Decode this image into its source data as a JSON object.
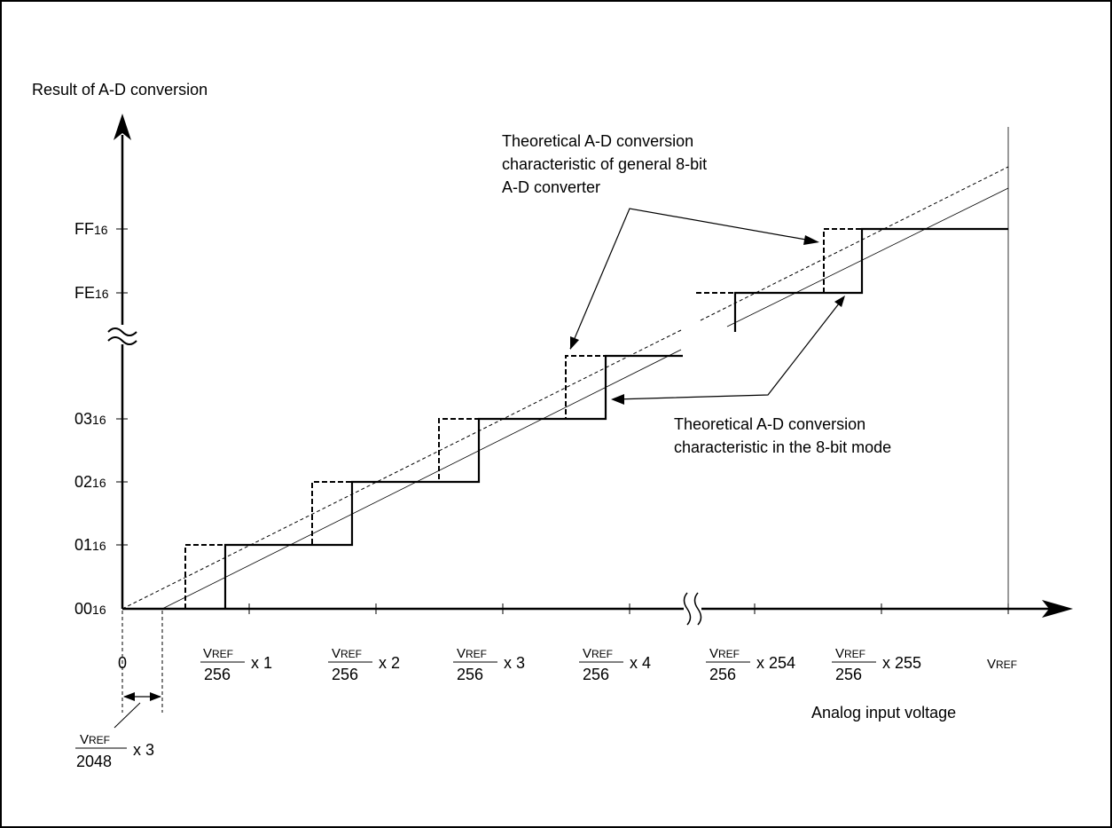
{
  "y_axis_title": "Result of A-D conversion",
  "x_axis_title": "Analog input voltage",
  "y_ticks": [
    {
      "main": "FF",
      "sub": "16"
    },
    {
      "main": "FE",
      "sub": "16"
    },
    {
      "main": "03",
      "sub": "16"
    },
    {
      "main": "02",
      "sub": "16"
    },
    {
      "main": "01",
      "sub": "16"
    },
    {
      "main": "00",
      "sub": "16"
    }
  ],
  "x_zero": "0",
  "x_ticks": [
    {
      "num_v": "V",
      "num_sc": "REF",
      "den": "256",
      "mult": "x 1"
    },
    {
      "num_v": "V",
      "num_sc": "REF",
      "den": "256",
      "mult": "x 2"
    },
    {
      "num_v": "V",
      "num_sc": "REF",
      "den": "256",
      "mult": "x 3"
    },
    {
      "num_v": "V",
      "num_sc": "REF",
      "den": "256",
      "mult": "x 4"
    },
    {
      "num_v": "V",
      "num_sc": "REF",
      "den": "256",
      "mult": "x 254"
    },
    {
      "num_v": "V",
      "num_sc": "REF",
      "den": "256",
      "mult": "x 255"
    }
  ],
  "x_end": {
    "v": "V",
    "sc": "REF"
  },
  "offset_label": {
    "num_v": "V",
    "num_sc": "REF",
    "den": "2048",
    "mult": "x 3"
  },
  "annotation_general": [
    "Theoretical A-D conversion",
    "characteristic of general 8-bit",
    "A-D converter"
  ],
  "annotation_8bit": [
    "Theoretical A-D conversion",
    "characteristic in the 8-bit mode"
  ]
}
